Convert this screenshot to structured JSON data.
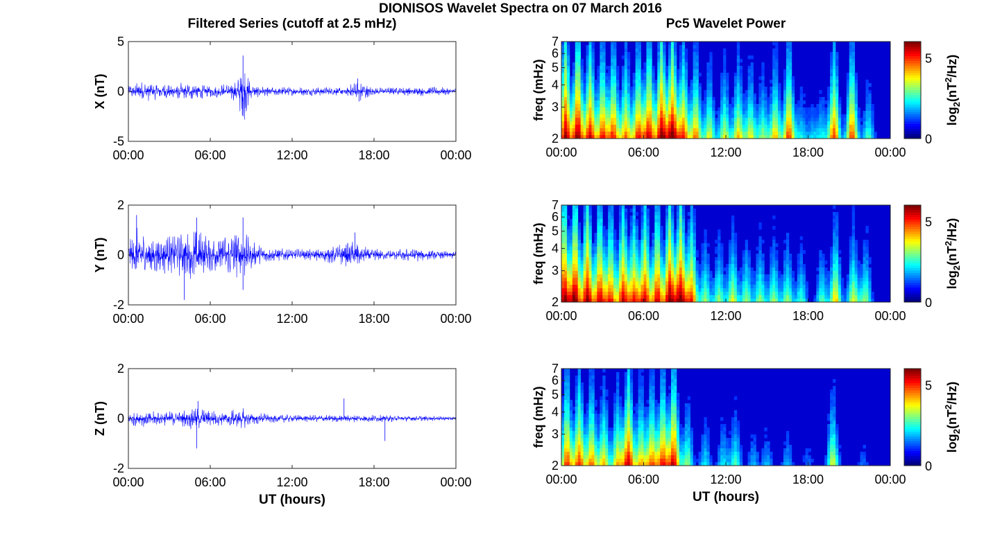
{
  "figure": {
    "suptitle": "DIONISOS Wavelet Spectra on 07 March 2016",
    "left_title": "Filtered Series (cutoff at 2.5 mHz)",
    "right_title": "Pc5 Wavelet Power",
    "xlabel": "UT (hours)"
  },
  "chart_data": [
    {
      "type": "line",
      "name": "X",
      "ylabel": "X (nT)",
      "xlim": [
        0,
        24
      ],
      "ylim": [
        -5,
        5
      ],
      "yticks": [
        5,
        0,
        -5
      ],
      "xticks": [
        "00:00",
        "06:00",
        "12:00",
        "18:00",
        "00:00"
      ],
      "envelope": [
        [
          0,
          0.7
        ],
        [
          1,
          1.1
        ],
        [
          2,
          0.9
        ],
        [
          3,
          0.8
        ],
        [
          4,
          0.9
        ],
        [
          5,
          1.0
        ],
        [
          6,
          0.6
        ],
        [
          7,
          0.8
        ],
        [
          8,
          1.2
        ],
        [
          8.4,
          3.5
        ],
        [
          9,
          0.7
        ],
        [
          10,
          0.5
        ],
        [
          12,
          0.45
        ],
        [
          14,
          0.45
        ],
        [
          16,
          0.5
        ],
        [
          16.8,
          1.2
        ],
        [
          17.3,
          0.9
        ],
        [
          18,
          0.4
        ],
        [
          20,
          0.45
        ],
        [
          22,
          0.5
        ],
        [
          24,
          0.35
        ]
      ],
      "spikes": [
        [
          8.4,
          3.6
        ],
        [
          8.35,
          -2.4
        ],
        [
          16.9,
          -1.0
        ],
        [
          16.8,
          1.3
        ]
      ],
      "color": "#0000ff"
    },
    {
      "type": "line",
      "name": "Y",
      "ylabel": "Y (nT)",
      "xlim": [
        0,
        24
      ],
      "ylim": [
        -2,
        2
      ],
      "yticks": [
        2,
        0,
        -2
      ],
      "xticks": [
        "00:00",
        "06:00",
        "12:00",
        "18:00",
        "00:00"
      ],
      "envelope": [
        [
          0,
          0.4
        ],
        [
          0.5,
          1.2
        ],
        [
          1,
          1.0
        ],
        [
          2,
          0.9
        ],
        [
          3,
          0.8
        ],
        [
          4,
          0.9
        ],
        [
          4.8,
          1.3
        ],
        [
          5.5,
          0.9
        ],
        [
          6,
          0.8
        ],
        [
          7,
          0.9
        ],
        [
          8.3,
          1.2
        ],
        [
          9,
          0.6
        ],
        [
          10,
          0.3
        ],
        [
          12,
          0.25
        ],
        [
          14,
          0.25
        ],
        [
          16.7,
          0.6
        ],
        [
          17.5,
          0.3
        ],
        [
          19,
          0.2
        ],
        [
          21,
          0.3
        ],
        [
          22,
          0.2
        ],
        [
          24,
          0.15
        ]
      ],
      "spikes": [
        [
          0.6,
          1.6
        ],
        [
          4.1,
          -1.8
        ],
        [
          5.0,
          1.5
        ],
        [
          8.4,
          1.5
        ],
        [
          8.4,
          -1.4
        ],
        [
          16.6,
          0.9
        ]
      ],
      "color": "#0000ff"
    },
    {
      "type": "line",
      "name": "Z",
      "ylabel": "Z (nT)",
      "xlim": [
        0,
        24
      ],
      "ylim": [
        -2,
        2
      ],
      "yticks": [
        2,
        0,
        -2
      ],
      "xticks": [
        "00:00",
        "06:00",
        "12:00",
        "18:00",
        "00:00"
      ],
      "envelope": [
        [
          0,
          0.3
        ],
        [
          1,
          0.35
        ],
        [
          2,
          0.3
        ],
        [
          3,
          0.3
        ],
        [
          4,
          0.35
        ],
        [
          5,
          0.5
        ],
        [
          6,
          0.35
        ],
        [
          7,
          0.3
        ],
        [
          8.4,
          0.45
        ],
        [
          9,
          0.25
        ],
        [
          12,
          0.15
        ],
        [
          15,
          0.15
        ],
        [
          18,
          0.15
        ],
        [
          21,
          0.12
        ],
        [
          24,
          0.08
        ]
      ],
      "spikes": [
        [
          5.0,
          -1.2
        ],
        [
          5.1,
          0.7
        ],
        [
          15.8,
          0.8
        ],
        [
          18.8,
          -0.9
        ]
      ],
      "color": "#0000ff"
    },
    {
      "type": "heatmap",
      "name": "X wavelet power",
      "ylabel": "freq (mHz)",
      "colorbar_label": "log",
      "colorbar_sub": "2",
      "colorbar_unit": "(nT",
      "colorbar_sup": "2",
      "colorbar_tail": "/Hz)",
      "colorbar_ticks": [
        5,
        0
      ],
      "clim": [
        0,
        6
      ],
      "ylim": [
        2,
        7
      ],
      "yticks": [
        7,
        6,
        5,
        4,
        3,
        2
      ],
      "xticks": [
        "00:00",
        "06:00",
        "12:00",
        "18:00",
        "00:00"
      ],
      "bursts_hours_power": [
        [
          0.3,
          6
        ],
        [
          1.2,
          6
        ],
        [
          2.1,
          5.5
        ],
        [
          3.0,
          5
        ],
        [
          3.8,
          5
        ],
        [
          4.7,
          4.5
        ],
        [
          5.6,
          5
        ],
        [
          6.4,
          5.5
        ],
        [
          7.3,
          6
        ],
        [
          8.1,
          6
        ],
        [
          8.9,
          5
        ],
        [
          9.8,
          4.5
        ],
        [
          10.8,
          3.5
        ],
        [
          11.9,
          3.5
        ],
        [
          12.9,
          4
        ],
        [
          13.8,
          3.5
        ],
        [
          14.7,
          3
        ],
        [
          15.6,
          4
        ],
        [
          16.6,
          5
        ],
        [
          17.5,
          2
        ],
        [
          18.3,
          1.5
        ],
        [
          19.0,
          2
        ],
        [
          19.9,
          5
        ],
        [
          21.2,
          5
        ],
        [
          22.4,
          2.5
        ]
      ]
    },
    {
      "type": "heatmap",
      "name": "Y wavelet power",
      "ylabel": "freq (mHz)",
      "colorbar_label": "log",
      "colorbar_sub": "2",
      "colorbar_unit": "(nT",
      "colorbar_sup": "2",
      "colorbar_tail": "/Hz)",
      "colorbar_ticks": [
        5,
        0
      ],
      "clim": [
        0,
        6
      ],
      "ylim": [
        2,
        7
      ],
      "yticks": [
        7,
        6,
        5,
        4,
        3,
        2
      ],
      "xticks": [
        "00:00",
        "06:00",
        "12:00",
        "18:00",
        "00:00"
      ],
      "bursts_hours_power": [
        [
          0.2,
          6
        ],
        [
          1.0,
          6
        ],
        [
          1.9,
          6
        ],
        [
          2.8,
          5.5
        ],
        [
          3.6,
          5
        ],
        [
          4.5,
          5.5
        ],
        [
          5.3,
          5
        ],
        [
          6.1,
          5.5
        ],
        [
          7.0,
          5.5
        ],
        [
          7.9,
          6
        ],
        [
          8.7,
          6
        ],
        [
          9.5,
          5
        ],
        [
          10.5,
          3
        ],
        [
          11.5,
          3
        ],
        [
          12.5,
          3.5
        ],
        [
          13.5,
          3
        ],
        [
          14.5,
          3
        ],
        [
          15.5,
          3
        ],
        [
          16.5,
          3
        ],
        [
          17.5,
          2.5
        ],
        [
          19.0,
          2.5
        ],
        [
          20.0,
          4
        ],
        [
          21.3,
          3.5
        ],
        [
          22.2,
          3
        ]
      ]
    },
    {
      "type": "heatmap",
      "name": "Z wavelet power",
      "ylabel": "freq (mHz)",
      "colorbar_label": "log",
      "colorbar_sub": "2",
      "colorbar_unit": "(nT",
      "colorbar_sup": "2",
      "colorbar_tail": "/Hz)",
      "colorbar_ticks": [
        5,
        0
      ],
      "clim": [
        0,
        6
      ],
      "ylim": [
        2,
        7
      ],
      "yticks": [
        7,
        6,
        5,
        4,
        3,
        2
      ],
      "xticks": [
        "00:00",
        "06:00",
        "12:00",
        "18:00",
        "00:00"
      ],
      "bursts_hours_power": [
        [
          0.4,
          5
        ],
        [
          1.3,
          5
        ],
        [
          2.2,
          4.5
        ],
        [
          3.1,
          4
        ],
        [
          4.1,
          4
        ],
        [
          4.9,
          5.5
        ],
        [
          5.8,
          4
        ],
        [
          6.6,
          4.5
        ],
        [
          7.4,
          5
        ],
        [
          8.2,
          5.5
        ],
        [
          9.2,
          3
        ],
        [
          10.5,
          2
        ],
        [
          11.8,
          2
        ],
        [
          12.7,
          2.5
        ],
        [
          14.0,
          1.5
        ],
        [
          15.0,
          1.5
        ],
        [
          16.5,
          1.5
        ],
        [
          18.0,
          1
        ],
        [
          19.8,
          3.5
        ],
        [
          22.0,
          1
        ]
      ]
    }
  ]
}
